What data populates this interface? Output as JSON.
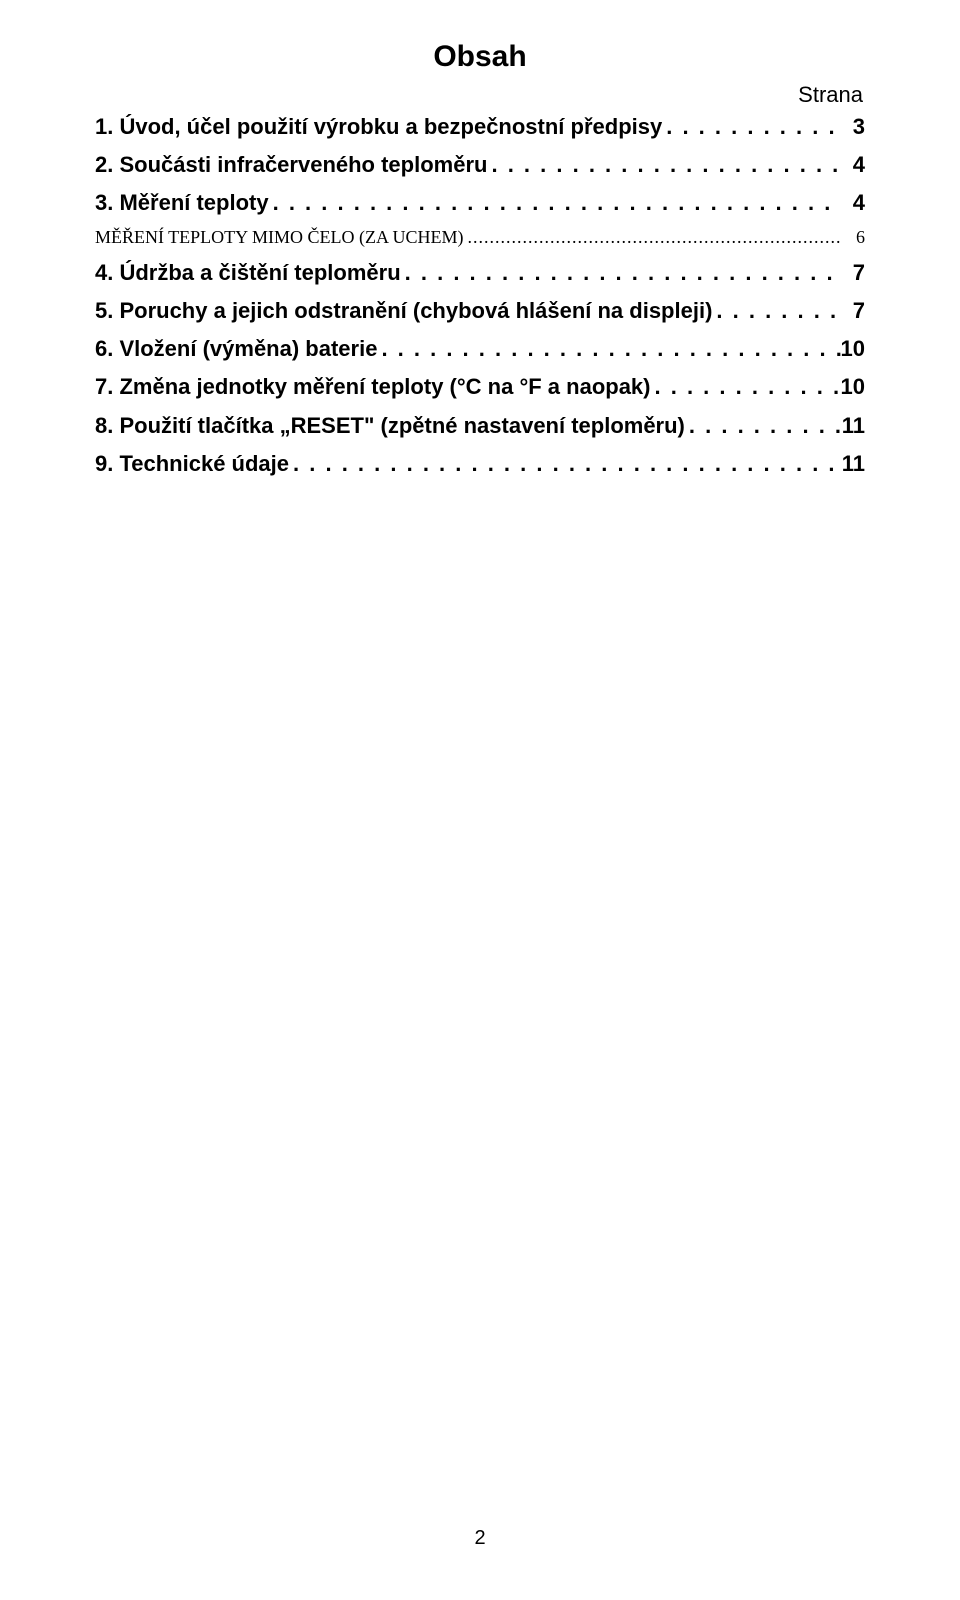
{
  "title": "Obsah",
  "page_label": "Strana",
  "dots": ". . . . . . . . . . . . . . . . . . . . . . . . . . . . . . . . . . . . . . . . . . . . . . . . . . . . . . . . . . . . . . . . . . . . . . . . . . . . . . . . . . . . . . . . . . . . . . . . . . . . . . . . . . . . . . . . . . . . . . . . . . . . . . . . . . . . . . . . . . . . . . . . . . . . . . . . . . . . . . . . . . . . . . . . . . . . . . . . . . . . . . . . . . . . . . . . . . . . . . . .",
  "subdots": "..........................................................................................................................................................................................................................................................................................................",
  "entries": [
    {
      "label": "1. Úvod, účel použití výrobku a bezpečnostní předpisy",
      "page": "3",
      "sub": false
    },
    {
      "label": "2. Součásti infračerveného teploměru",
      "page": "4",
      "sub": false
    },
    {
      "label": "3. Měření teploty",
      "page": "4",
      "sub": false
    },
    {
      "label": "MĚŘENÍ TEPLOTY MIMO ČELO (ZA UCHEM)",
      "page": "6",
      "sub": true
    },
    {
      "label": "4. Údržba a čištění teploměru",
      "page": "7",
      "sub": false
    },
    {
      "label": "5. Poruchy a jejich odstranění (chybová hlášení na displeji)",
      "page": "7",
      "sub": false
    },
    {
      "label": "6. Vložení (výměna) baterie",
      "page": "10",
      "sub": false
    },
    {
      "label": "7. Změna jednotky měření teploty (°C na °F a naopak)",
      "page": "10",
      "sub": false
    },
    {
      "label": "8. Použití tlačítka „RESET\" (zpětné nastavení teploměru)",
      "page": "11",
      "sub": false
    },
    {
      "label": "9. Technické údaje",
      "page": "11",
      "sub": false
    }
  ],
  "page_number": "2",
  "colors": {
    "text": "#000000",
    "background": "#ffffff"
  },
  "fontsize": {
    "title": 30,
    "strana": 22,
    "entry": 22,
    "sub": 18,
    "pagenum": 20
  }
}
